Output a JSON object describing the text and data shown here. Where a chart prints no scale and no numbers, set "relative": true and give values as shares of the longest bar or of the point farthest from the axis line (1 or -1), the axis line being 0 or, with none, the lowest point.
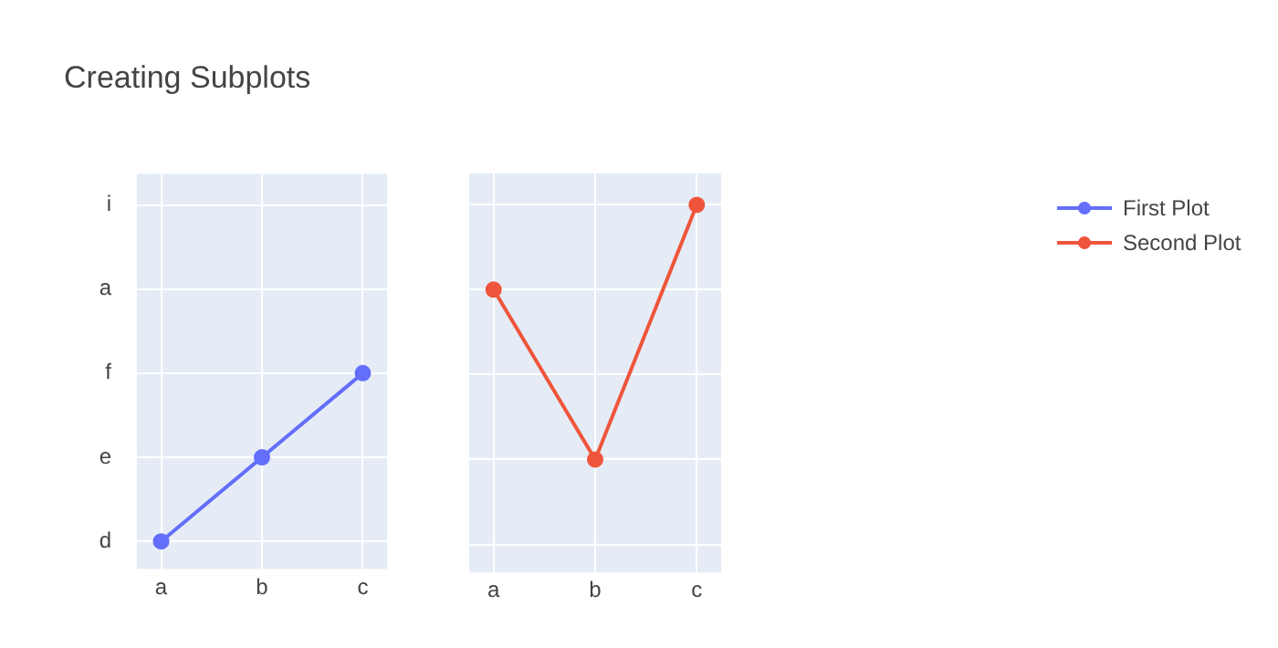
{
  "chart_data": [
    {
      "type": "line",
      "title": "Creating Subplots",
      "categories": [
        "a",
        "b",
        "c"
      ],
      "relative": true,
      "series": [
        {
          "name": "First Plot",
          "color": "#636efa",
          "values": [
            0,
            0.5,
            1
          ]
        }
      ],
      "annotations": [
        "d",
        "e",
        "f",
        "a",
        "i"
      ],
      "grid": true,
      "legend": "top right",
      "marker": "circle"
    },
    {
      "type": "line",
      "categories": [
        "a",
        "b",
        "c"
      ],
      "relative": true,
      "series": [
        {
          "name": "Second Plot",
          "color": "#ef553b",
          "values": [
            0.667,
            0,
            1
          ]
        }
      ],
      "grid": true,
      "legend": "top right",
      "marker": "circle"
    }
  ]
}
